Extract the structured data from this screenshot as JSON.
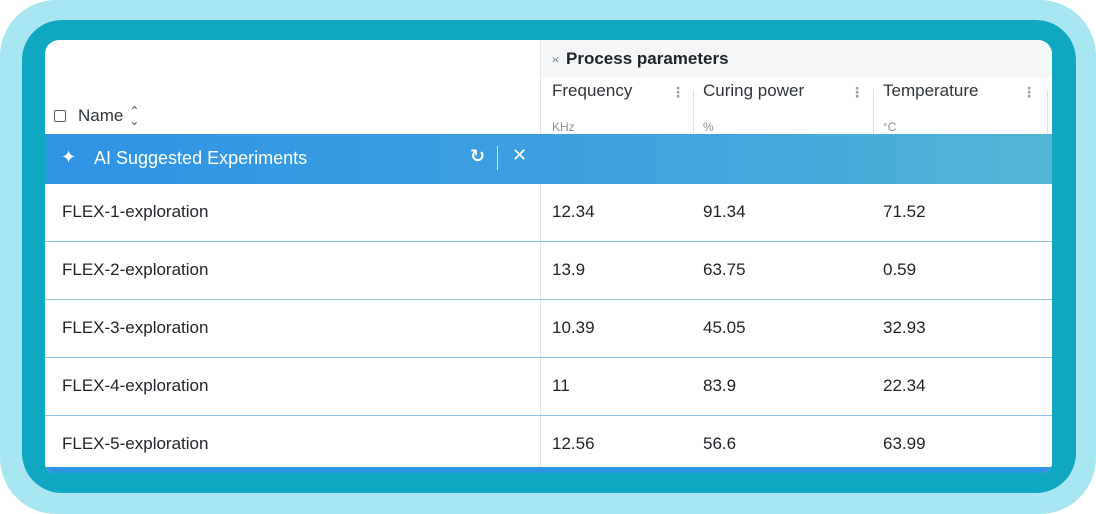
{
  "table": {
    "group_header": {
      "toggle_icon": "collapse-expand-icon",
      "title": "Process parameters"
    },
    "name_column": {
      "label": "Name",
      "sort_icon": "sort-icon"
    },
    "columns": [
      {
        "label": "Frequency",
        "unit": "KHz"
      },
      {
        "label": "Curing power",
        "unit": "%"
      },
      {
        "label": "Temperature",
        "unit": "°C"
      }
    ],
    "ai_bar": {
      "icon": "sparkle-icon",
      "title": "AI Suggested Experiments",
      "refresh_icon": "refresh-icon",
      "close_icon": "close-icon",
      "color_start": "#2f93e6",
      "color_end": "#52b6d6"
    },
    "rows": [
      {
        "name": "FLEX-1-exploration",
        "frequency": "12.34",
        "curing_power": "91.34",
        "temperature": "71.52"
      },
      {
        "name": "FLEX-2-exploration",
        "frequency": "13.9",
        "curing_power": "63.75",
        "temperature": "0.59"
      },
      {
        "name": "FLEX-3-exploration",
        "frequency": "10.39",
        "curing_power": "45.05",
        "temperature": "32.93"
      },
      {
        "name": "FLEX-4-exploration",
        "frequency": "11",
        "curing_power": "83.9",
        "temperature": "22.34"
      },
      {
        "name": "FLEX-5-exploration",
        "frequency": "12.56",
        "curing_power": "56.6",
        "temperature": "63.99"
      }
    ]
  },
  "frame_colors": {
    "outer": "#a8e6f1",
    "inner": "#0fa8c0"
  }
}
